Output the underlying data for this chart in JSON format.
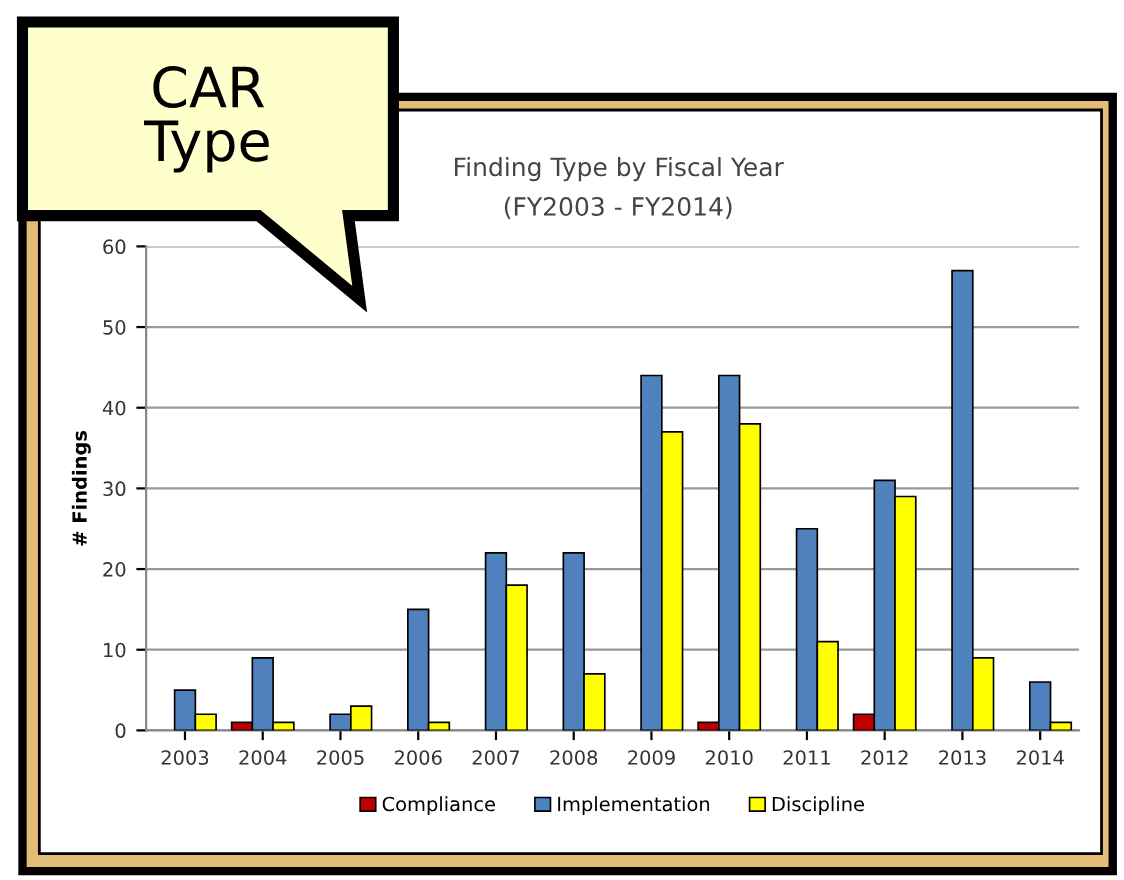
{
  "chart_data": {
    "type": "bar",
    "title": "Finding Type by Fiscal Year",
    "subtitle": "(FY2003 - FY2014)",
    "ylabel": "# Findings",
    "annotations": [
      "CAR Type"
    ],
    "categories": [
      "2003",
      "2004",
      "2005",
      "2006",
      "2007",
      "2008",
      "2009",
      "2010",
      "2011",
      "2012",
      "2013",
      "2014"
    ],
    "series": [
      {
        "name": "Compliance",
        "color": "#c00000",
        "values": [
          null,
          1,
          null,
          null,
          null,
          null,
          null,
          1,
          null,
          2,
          null,
          null
        ]
      },
      {
        "name": "Implementation",
        "color": "#4f81bd",
        "values": [
          5,
          9,
          2,
          15,
          22,
          22,
          44,
          44,
          25,
          31,
          57,
          6
        ]
      },
      {
        "name": "Discipline",
        "color": "#ffff00",
        "values": [
          2,
          1,
          3,
          1,
          18,
          7,
          37,
          38,
          11,
          29,
          9,
          1
        ]
      }
    ],
    "ylim": [
      0,
      60
    ],
    "yticks": [
      0,
      10,
      20,
      30,
      40,
      50,
      60
    ],
    "grid": "y",
    "legend": "bottom"
  }
}
